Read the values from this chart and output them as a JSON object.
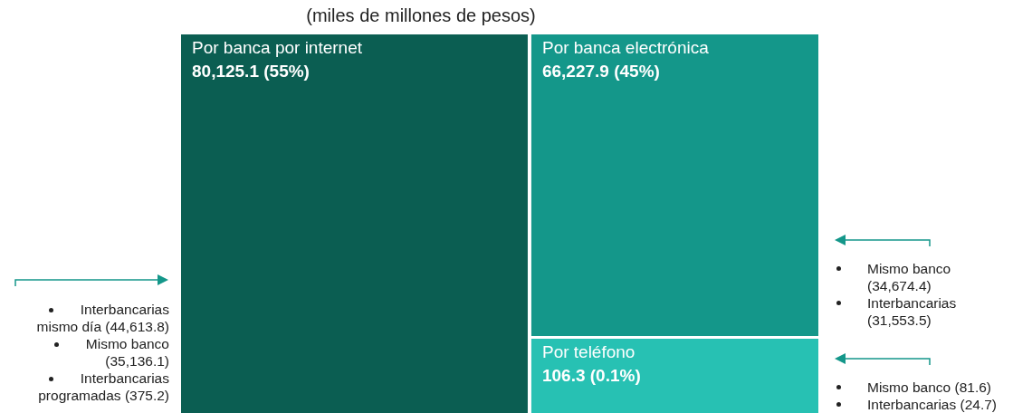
{
  "chart_data": {
    "type": "other",
    "title": "(miles de millones de pesos)",
    "categories": [
      "Por banca por internet",
      "Por banca electrónica",
      "Por teléfono"
    ],
    "values": [
      80125.1,
      66227.9,
      106.3
    ],
    "value_labels": [
      "80,125.1 (55%)",
      "66,227.9 (45%)",
      "106.3 (0.1%)"
    ],
    "colors": [
      "#0b5e52",
      "#14978a",
      "#27c1b3"
    ],
    "annotations": [
      {
        "text": "Interbancarias mismo día (44,613.8)",
        "x": "Por banca por internet"
      },
      {
        "text": "Mismo banco (35,136.1)",
        "x": "Por banca por internet"
      },
      {
        "text": "Interbancarias programadas (375.2)",
        "x": "Por banca por internet"
      },
      {
        "text": "Mismo banco (34,674.4)",
        "x": "Por banca electrónica"
      },
      {
        "text": "Interbancarias (31,553.5)",
        "x": "Por banca electrónica"
      },
      {
        "text": "Mismo banco (81.6)",
        "x": "Por teléfono"
      },
      {
        "text": "Interbancarias (24.7)",
        "x": "Por teléfono"
      }
    ]
  }
}
